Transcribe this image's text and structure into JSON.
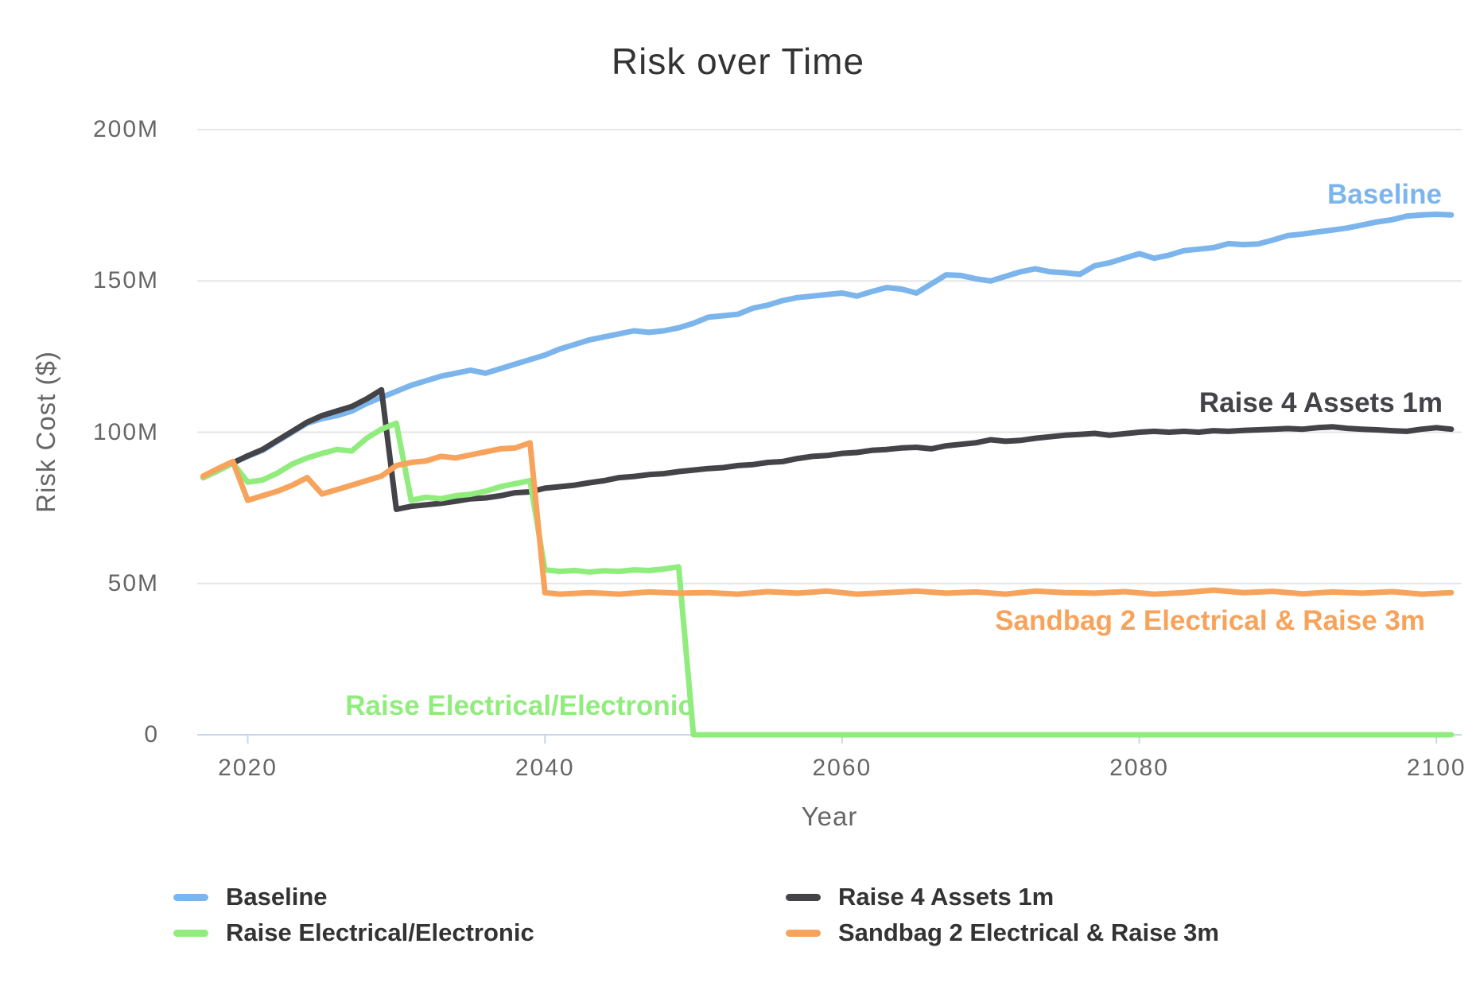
{
  "title": "Risk over Time",
  "styles": {
    "background": "#ffffff",
    "grid_color": "#e6e6e6",
    "axis_line_color": "#ccd6eb",
    "title_color": "#333333",
    "tick_label_color": "#666666",
    "legend_text_color": "#333333"
  },
  "chart_data": {
    "type": "line",
    "title": "Risk over Time",
    "xlabel": "Year",
    "ylabel": "Risk Cost ($)",
    "units": "USD millions",
    "xlim": [
      2016.6,
      2101.7
    ],
    "ylim_millions": [
      0,
      200
    ],
    "grid": "horizontal",
    "legend_position": "bottom",
    "x_ticks": [
      {
        "label": "2020",
        "value": 2020
      },
      {
        "label": "2040",
        "value": 2040
      },
      {
        "label": "2060",
        "value": 2060
      },
      {
        "label": "2080",
        "value": 2080
      },
      {
        "label": "2100",
        "value": 2100
      }
    ],
    "y_ticks": [
      {
        "label": "200M",
        "value": 200
      },
      {
        "label": "150M",
        "value": 150
      },
      {
        "label": "100M",
        "value": 100
      },
      {
        "label": "50M",
        "value": 50
      },
      {
        "label": "0",
        "value": 0
      }
    ],
    "series": [
      {
        "id": "baseline",
        "name": "Baseline",
        "color": "#7cb5ec",
        "points": [
          [
            2017,
            85
          ],
          [
            2018,
            87.5
          ],
          [
            2019,
            90
          ],
          [
            2020,
            92
          ],
          [
            2021,
            94
          ],
          [
            2022,
            97
          ],
          [
            2023,
            100
          ],
          [
            2024,
            103
          ],
          [
            2025,
            104.5
          ],
          [
            2026,
            105.5
          ],
          [
            2027,
            107
          ],
          [
            2028,
            109.5
          ],
          [
            2029,
            111.5
          ],
          [
            2030,
            113.5
          ],
          [
            2031,
            115.5
          ],
          [
            2032,
            117
          ],
          [
            2033,
            118.5
          ],
          [
            2034,
            119.5
          ],
          [
            2035,
            120.5
          ],
          [
            2036,
            119.5
          ],
          [
            2037,
            121
          ],
          [
            2038,
            122.5
          ],
          [
            2039,
            124
          ],
          [
            2040,
            125.5
          ],
          [
            2041,
            127.5
          ],
          [
            2042,
            129
          ],
          [
            2043,
            130.5
          ],
          [
            2044,
            131.5
          ],
          [
            2045,
            132.5
          ],
          [
            2046,
            133.5
          ],
          [
            2047,
            133
          ],
          [
            2048,
            133.5
          ],
          [
            2049,
            134.5
          ],
          [
            2050,
            136
          ],
          [
            2051,
            138
          ],
          [
            2052,
            138.5
          ],
          [
            2053,
            139
          ],
          [
            2054,
            141
          ],
          [
            2055,
            142
          ],
          [
            2056,
            143.5
          ],
          [
            2057,
            144.5
          ],
          [
            2058,
            145
          ],
          [
            2059,
            145.5
          ],
          [
            2060,
            146
          ],
          [
            2061,
            145
          ],
          [
            2062,
            146.5
          ],
          [
            2063,
            147.8
          ],
          [
            2064,
            147.3
          ],
          [
            2065,
            146
          ],
          [
            2066,
            149
          ],
          [
            2067,
            152
          ],
          [
            2068,
            151.8
          ],
          [
            2069,
            150.7
          ],
          [
            2070,
            150
          ],
          [
            2071,
            151.5
          ],
          [
            2072,
            153
          ],
          [
            2073,
            154
          ],
          [
            2074,
            153
          ],
          [
            2075,
            152.7
          ],
          [
            2076,
            152.2
          ],
          [
            2077,
            155
          ],
          [
            2078,
            156
          ],
          [
            2079,
            157.5
          ],
          [
            2080,
            159
          ],
          [
            2081,
            157.5
          ],
          [
            2082,
            158.5
          ],
          [
            2083,
            160
          ],
          [
            2084,
            160.5
          ],
          [
            2085,
            161
          ],
          [
            2086,
            162.3
          ],
          [
            2087,
            162
          ],
          [
            2088,
            162.2
          ],
          [
            2089,
            163.5
          ],
          [
            2090,
            165
          ],
          [
            2091,
            165.5
          ],
          [
            2092,
            166.2
          ],
          [
            2093,
            166.8
          ],
          [
            2094,
            167.5
          ],
          [
            2095,
            168.5
          ],
          [
            2096,
            169.5
          ],
          [
            2097,
            170.2
          ],
          [
            2098,
            171.4
          ],
          [
            2099,
            171.8
          ],
          [
            2100,
            172
          ],
          [
            2101,
            171.8
          ]
        ]
      },
      {
        "id": "raise4",
        "name": "Raise 4 Assets 1m",
        "color": "#434348",
        "points": [
          [
            2017,
            85
          ],
          [
            2018,
            87.3
          ],
          [
            2019,
            89.8
          ],
          [
            2020,
            92.2
          ],
          [
            2021,
            94.3
          ],
          [
            2022,
            97.3
          ],
          [
            2023,
            100.3
          ],
          [
            2024,
            103.3
          ],
          [
            2025,
            105.5
          ],
          [
            2026,
            107
          ],
          [
            2027,
            108.5
          ],
          [
            2028,
            111
          ],
          [
            2029,
            114
          ],
          [
            2030,
            74.5
          ],
          [
            2031,
            75.5
          ],
          [
            2032,
            76
          ],
          [
            2033,
            76.5
          ],
          [
            2034,
            77.2
          ],
          [
            2035,
            78
          ],
          [
            2036,
            78.3
          ],
          [
            2037,
            79
          ],
          [
            2038,
            80
          ],
          [
            2039,
            80.3
          ],
          [
            2040,
            81.5
          ],
          [
            2041,
            82
          ],
          [
            2042,
            82.5
          ],
          [
            2043,
            83.3
          ],
          [
            2044,
            84
          ],
          [
            2045,
            85
          ],
          [
            2046,
            85.4
          ],
          [
            2047,
            86
          ],
          [
            2048,
            86.3
          ],
          [
            2049,
            87
          ],
          [
            2050,
            87.5
          ],
          [
            2051,
            88
          ],
          [
            2052,
            88.3
          ],
          [
            2053,
            89
          ],
          [
            2054,
            89.3
          ],
          [
            2055,
            90
          ],
          [
            2056,
            90.3
          ],
          [
            2057,
            91.3
          ],
          [
            2058,
            92
          ],
          [
            2059,
            92.3
          ],
          [
            2060,
            93
          ],
          [
            2061,
            93.3
          ],
          [
            2062,
            94
          ],
          [
            2063,
            94.3
          ],
          [
            2064,
            94.8
          ],
          [
            2065,
            95
          ],
          [
            2066,
            94.5
          ],
          [
            2067,
            95.5
          ],
          [
            2068,
            96
          ],
          [
            2069,
            96.5
          ],
          [
            2070,
            97.5
          ],
          [
            2071,
            97
          ],
          [
            2072,
            97.3
          ],
          [
            2073,
            98
          ],
          [
            2074,
            98.5
          ],
          [
            2075,
            99
          ],
          [
            2076,
            99.3
          ],
          [
            2077,
            99.6
          ],
          [
            2078,
            99
          ],
          [
            2079,
            99.5
          ],
          [
            2080,
            100
          ],
          [
            2081,
            100.3
          ],
          [
            2082,
            100
          ],
          [
            2083,
            100.3
          ],
          [
            2084,
            100
          ],
          [
            2085,
            100.5
          ],
          [
            2086,
            100.3
          ],
          [
            2087,
            100.6
          ],
          [
            2088,
            100.8
          ],
          [
            2089,
            101
          ],
          [
            2090,
            101.2
          ],
          [
            2091,
            101
          ],
          [
            2092,
            101.5
          ],
          [
            2093,
            101.8
          ],
          [
            2094,
            101.3
          ],
          [
            2095,
            101
          ],
          [
            2096,
            100.8
          ],
          [
            2097,
            100.5
          ],
          [
            2098,
            100.3
          ],
          [
            2099,
            101
          ],
          [
            2100,
            101.5
          ],
          [
            2101,
            101
          ]
        ]
      },
      {
        "id": "elec",
        "name": "Raise Electrical/Electronic",
        "color": "#90ed7d",
        "points": [
          [
            2017,
            85
          ],
          [
            2018,
            87.3
          ],
          [
            2019,
            89.8
          ],
          [
            2020,
            83.5
          ],
          [
            2021,
            84.2
          ],
          [
            2022,
            86.5
          ],
          [
            2023,
            89.5
          ],
          [
            2024,
            91.5
          ],
          [
            2025,
            93
          ],
          [
            2026,
            94.3
          ],
          [
            2027,
            93.8
          ],
          [
            2028,
            98
          ],
          [
            2029,
            101
          ],
          [
            2030,
            103
          ],
          [
            2031,
            77.5
          ],
          [
            2032,
            78.5
          ],
          [
            2033,
            78
          ],
          [
            2034,
            79
          ],
          [
            2035,
            79.5
          ],
          [
            2036,
            80.5
          ],
          [
            2037,
            82
          ],
          [
            2038,
            83
          ],
          [
            2039,
            84
          ],
          [
            2040,
            54.5
          ],
          [
            2041,
            54
          ],
          [
            2042,
            54.3
          ],
          [
            2043,
            53.8
          ],
          [
            2044,
            54.2
          ],
          [
            2045,
            54
          ],
          [
            2046,
            54.5
          ],
          [
            2047,
            54.3
          ],
          [
            2048,
            54.8
          ],
          [
            2049,
            55.5
          ],
          [
            2050,
            0
          ],
          [
            2055,
            0
          ],
          [
            2060,
            0
          ],
          [
            2070,
            0
          ],
          [
            2080,
            0
          ],
          [
            2090,
            0
          ],
          [
            2101,
            0
          ]
        ]
      },
      {
        "id": "sandbag",
        "name": "Sandbag 2 Electrical & Raise 3m",
        "color": "#f7a35c",
        "points": [
          [
            2017,
            85.5
          ],
          [
            2018,
            88
          ],
          [
            2019,
            90.3
          ],
          [
            2020,
            77.5
          ],
          [
            2021,
            79
          ],
          [
            2022,
            80.5
          ],
          [
            2023,
            82.5
          ],
          [
            2024,
            85
          ],
          [
            2025,
            79.6
          ],
          [
            2026,
            81
          ],
          [
            2027,
            82.5
          ],
          [
            2028,
            84
          ],
          [
            2029,
            85.5
          ],
          [
            2030,
            89
          ],
          [
            2031,
            90
          ],
          [
            2032,
            90.5
          ],
          [
            2033,
            92
          ],
          [
            2034,
            91.5
          ],
          [
            2035,
            92.5
          ],
          [
            2036,
            93.5
          ],
          [
            2037,
            94.5
          ],
          [
            2038,
            94.8
          ],
          [
            2039,
            96.5
          ],
          [
            2040,
            47
          ],
          [
            2041,
            46.5
          ],
          [
            2043,
            47
          ],
          [
            2045,
            46.5
          ],
          [
            2047,
            47.2
          ],
          [
            2049,
            46.8
          ],
          [
            2051,
            47
          ],
          [
            2053,
            46.5
          ],
          [
            2055,
            47.3
          ],
          [
            2057,
            46.8
          ],
          [
            2059,
            47.5
          ],
          [
            2061,
            46.5
          ],
          [
            2063,
            47
          ],
          [
            2065,
            47.5
          ],
          [
            2067,
            46.8
          ],
          [
            2069,
            47.2
          ],
          [
            2071,
            46.5
          ],
          [
            2073,
            47.5
          ],
          [
            2075,
            47
          ],
          [
            2077,
            46.8
          ],
          [
            2079,
            47.3
          ],
          [
            2081,
            46.5
          ],
          [
            2083,
            47
          ],
          [
            2085,
            47.8
          ],
          [
            2087,
            47
          ],
          [
            2089,
            47.4
          ],
          [
            2091,
            46.6
          ],
          [
            2093,
            47.2
          ],
          [
            2095,
            46.8
          ],
          [
            2097,
            47.3
          ],
          [
            2099,
            46.5
          ],
          [
            2101,
            47
          ]
        ]
      }
    ]
  }
}
